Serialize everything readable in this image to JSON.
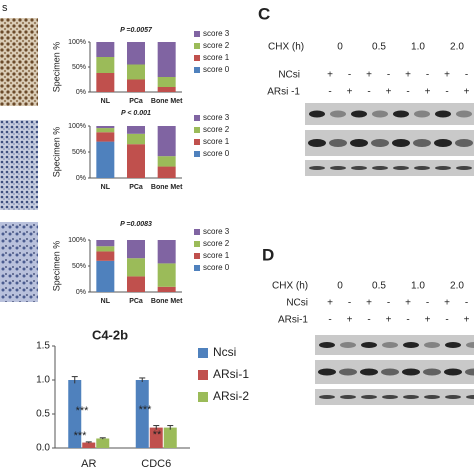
{
  "chart_data": [
    {
      "type": "stacked_bar",
      "title": "P =0.0057",
      "y_label": "Specimen %",
      "categories": [
        "NL",
        "PCa",
        "Bone Met"
      ],
      "ylim": [
        0,
        100
      ],
      "yticks": [
        {
          "value": 0,
          "label": "0%"
        },
        {
          "value": 50,
          "label": "50%"
        },
        {
          "value": 100,
          "label": "100%"
        }
      ],
      "series": [
        {
          "name": "score 0",
          "color": "#4f81bd",
          "values": [
            0,
            0,
            0
          ]
        },
        {
          "name": "score 1",
          "color": "#c0504d",
          "values": [
            38,
            25,
            10
          ]
        },
        {
          "name": "score 2",
          "color": "#9bbb59",
          "values": [
            32,
            30,
            20
          ]
        },
        {
          "name": "score 3",
          "color": "#8064a2",
          "values": [
            30,
            45,
            70
          ]
        }
      ]
    },
    {
      "type": "stacked_bar",
      "title": "P < 0.001",
      "y_label": "Specimen %",
      "categories": [
        "NL",
        "PCa",
        "Bone Met"
      ],
      "ylim": [
        0,
        100
      ],
      "yticks": [
        {
          "value": 0,
          "label": "0%"
        },
        {
          "value": 50,
          "label": "50%"
        },
        {
          "value": 100,
          "label": "100%"
        }
      ],
      "series": [
        {
          "name": "score 0",
          "color": "#4f81bd",
          "values": [
            70,
            0,
            0
          ]
        },
        {
          "name": "score 1",
          "color": "#c0504d",
          "values": [
            18,
            65,
            22
          ]
        },
        {
          "name": "score 2",
          "color": "#9bbb59",
          "values": [
            8,
            20,
            20
          ]
        },
        {
          "name": "score 3",
          "color": "#8064a2",
          "values": [
            4,
            15,
            58
          ]
        }
      ]
    },
    {
      "type": "stacked_bar",
      "title": "P =0.0083",
      "y_label": "Specimen %",
      "categories": [
        "NL",
        "PCa",
        "Bone Met"
      ],
      "ylim": [
        0,
        100
      ],
      "yticks": [
        {
          "value": 0,
          "label": "0%"
        },
        {
          "value": 50,
          "label": "50%"
        },
        {
          "value": 100,
          "label": "100%"
        }
      ],
      "series": [
        {
          "name": "score 0",
          "color": "#4f81bd",
          "values": [
            60,
            0,
            0
          ]
        },
        {
          "name": "score 1",
          "color": "#c0504d",
          "values": [
            18,
            30,
            10
          ]
        },
        {
          "name": "score 2",
          "color": "#9bbb59",
          "values": [
            10,
            35,
            45
          ]
        },
        {
          "name": "score 3",
          "color": "#8064a2",
          "values": [
            12,
            35,
            45
          ]
        }
      ]
    },
    {
      "type": "grouped_bar",
      "title": "C4-2b",
      "categories": [
        "AR",
        "CDC6"
      ],
      "ylim": [
        0,
        1.5
      ],
      "yticks": [
        {
          "value": 0,
          "label": "0.0"
        },
        {
          "value": 0.5,
          "label": "0.5"
        },
        {
          "value": 1,
          "label": "1.0"
        },
        {
          "value": 1.5,
          "label": "1.5"
        }
      ],
      "series": [
        {
          "name": "Ncsi",
          "color": "#4f81bd",
          "values": [
            1.0,
            1.0
          ],
          "errors": [
            0.05,
            0.03
          ]
        },
        {
          "name": "ARsi-1",
          "color": "#c0504d",
          "values": [
            0.08,
            0.3
          ],
          "errors": [
            0.01,
            0.03
          ]
        },
        {
          "name": "ARsi-2",
          "color": "#9bbb59",
          "values": [
            0.14,
            0.3
          ],
          "errors": [
            0.01,
            0.03
          ]
        }
      ],
      "annotations": [
        "***",
        "***",
        "***",
        "**"
      ]
    }
  ],
  "panels": [
    {
      "letter": "C",
      "chx_label": "CHX (h)",
      "times": [
        "0",
        "0.5",
        "1.0",
        "2.0"
      ],
      "rows": [
        {
          "label": "NCsi",
          "signs": [
            "+",
            "-",
            "+",
            "-",
            "+",
            "-",
            "+",
            "-"
          ]
        },
        {
          "label": "ARsi -1",
          "signs": [
            "-",
            "+",
            "-",
            "+",
            "-",
            "+",
            "-",
            "+"
          ]
        }
      ]
    },
    {
      "letter": "D",
      "chx_label": "CHX (h)",
      "times": [
        "0",
        "0.5",
        "1.0",
        "2.0"
      ],
      "rows": [
        {
          "label": "NCsi",
          "signs": [
            "+",
            "-",
            "+",
            "-",
            "+",
            "-",
            "+",
            "-"
          ]
        },
        {
          "label": "ARsi-1",
          "signs": [
            "-",
            "+",
            "-",
            "+",
            "-",
            "+",
            "-",
            "+"
          ]
        }
      ]
    }
  ],
  "fragment": "s"
}
